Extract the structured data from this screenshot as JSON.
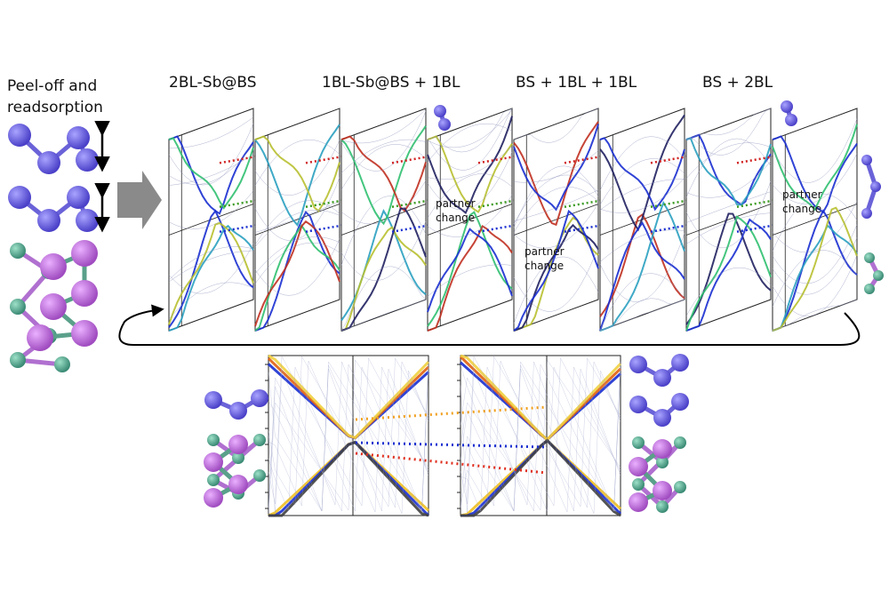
{
  "side_label": [
    "Peel-off and",
    "readsorption"
  ],
  "panel_titles": [
    "2BL-Sb@BS",
    "1BL-Sb@BS + 1BL",
    "BS + 1BL + 1BL",
    "BS + 2BL"
  ],
  "annotations": [
    [
      "partner",
      "change"
    ],
    [
      "partner",
      "change"
    ],
    [
      "partner",
      "change"
    ]
  ]
}
